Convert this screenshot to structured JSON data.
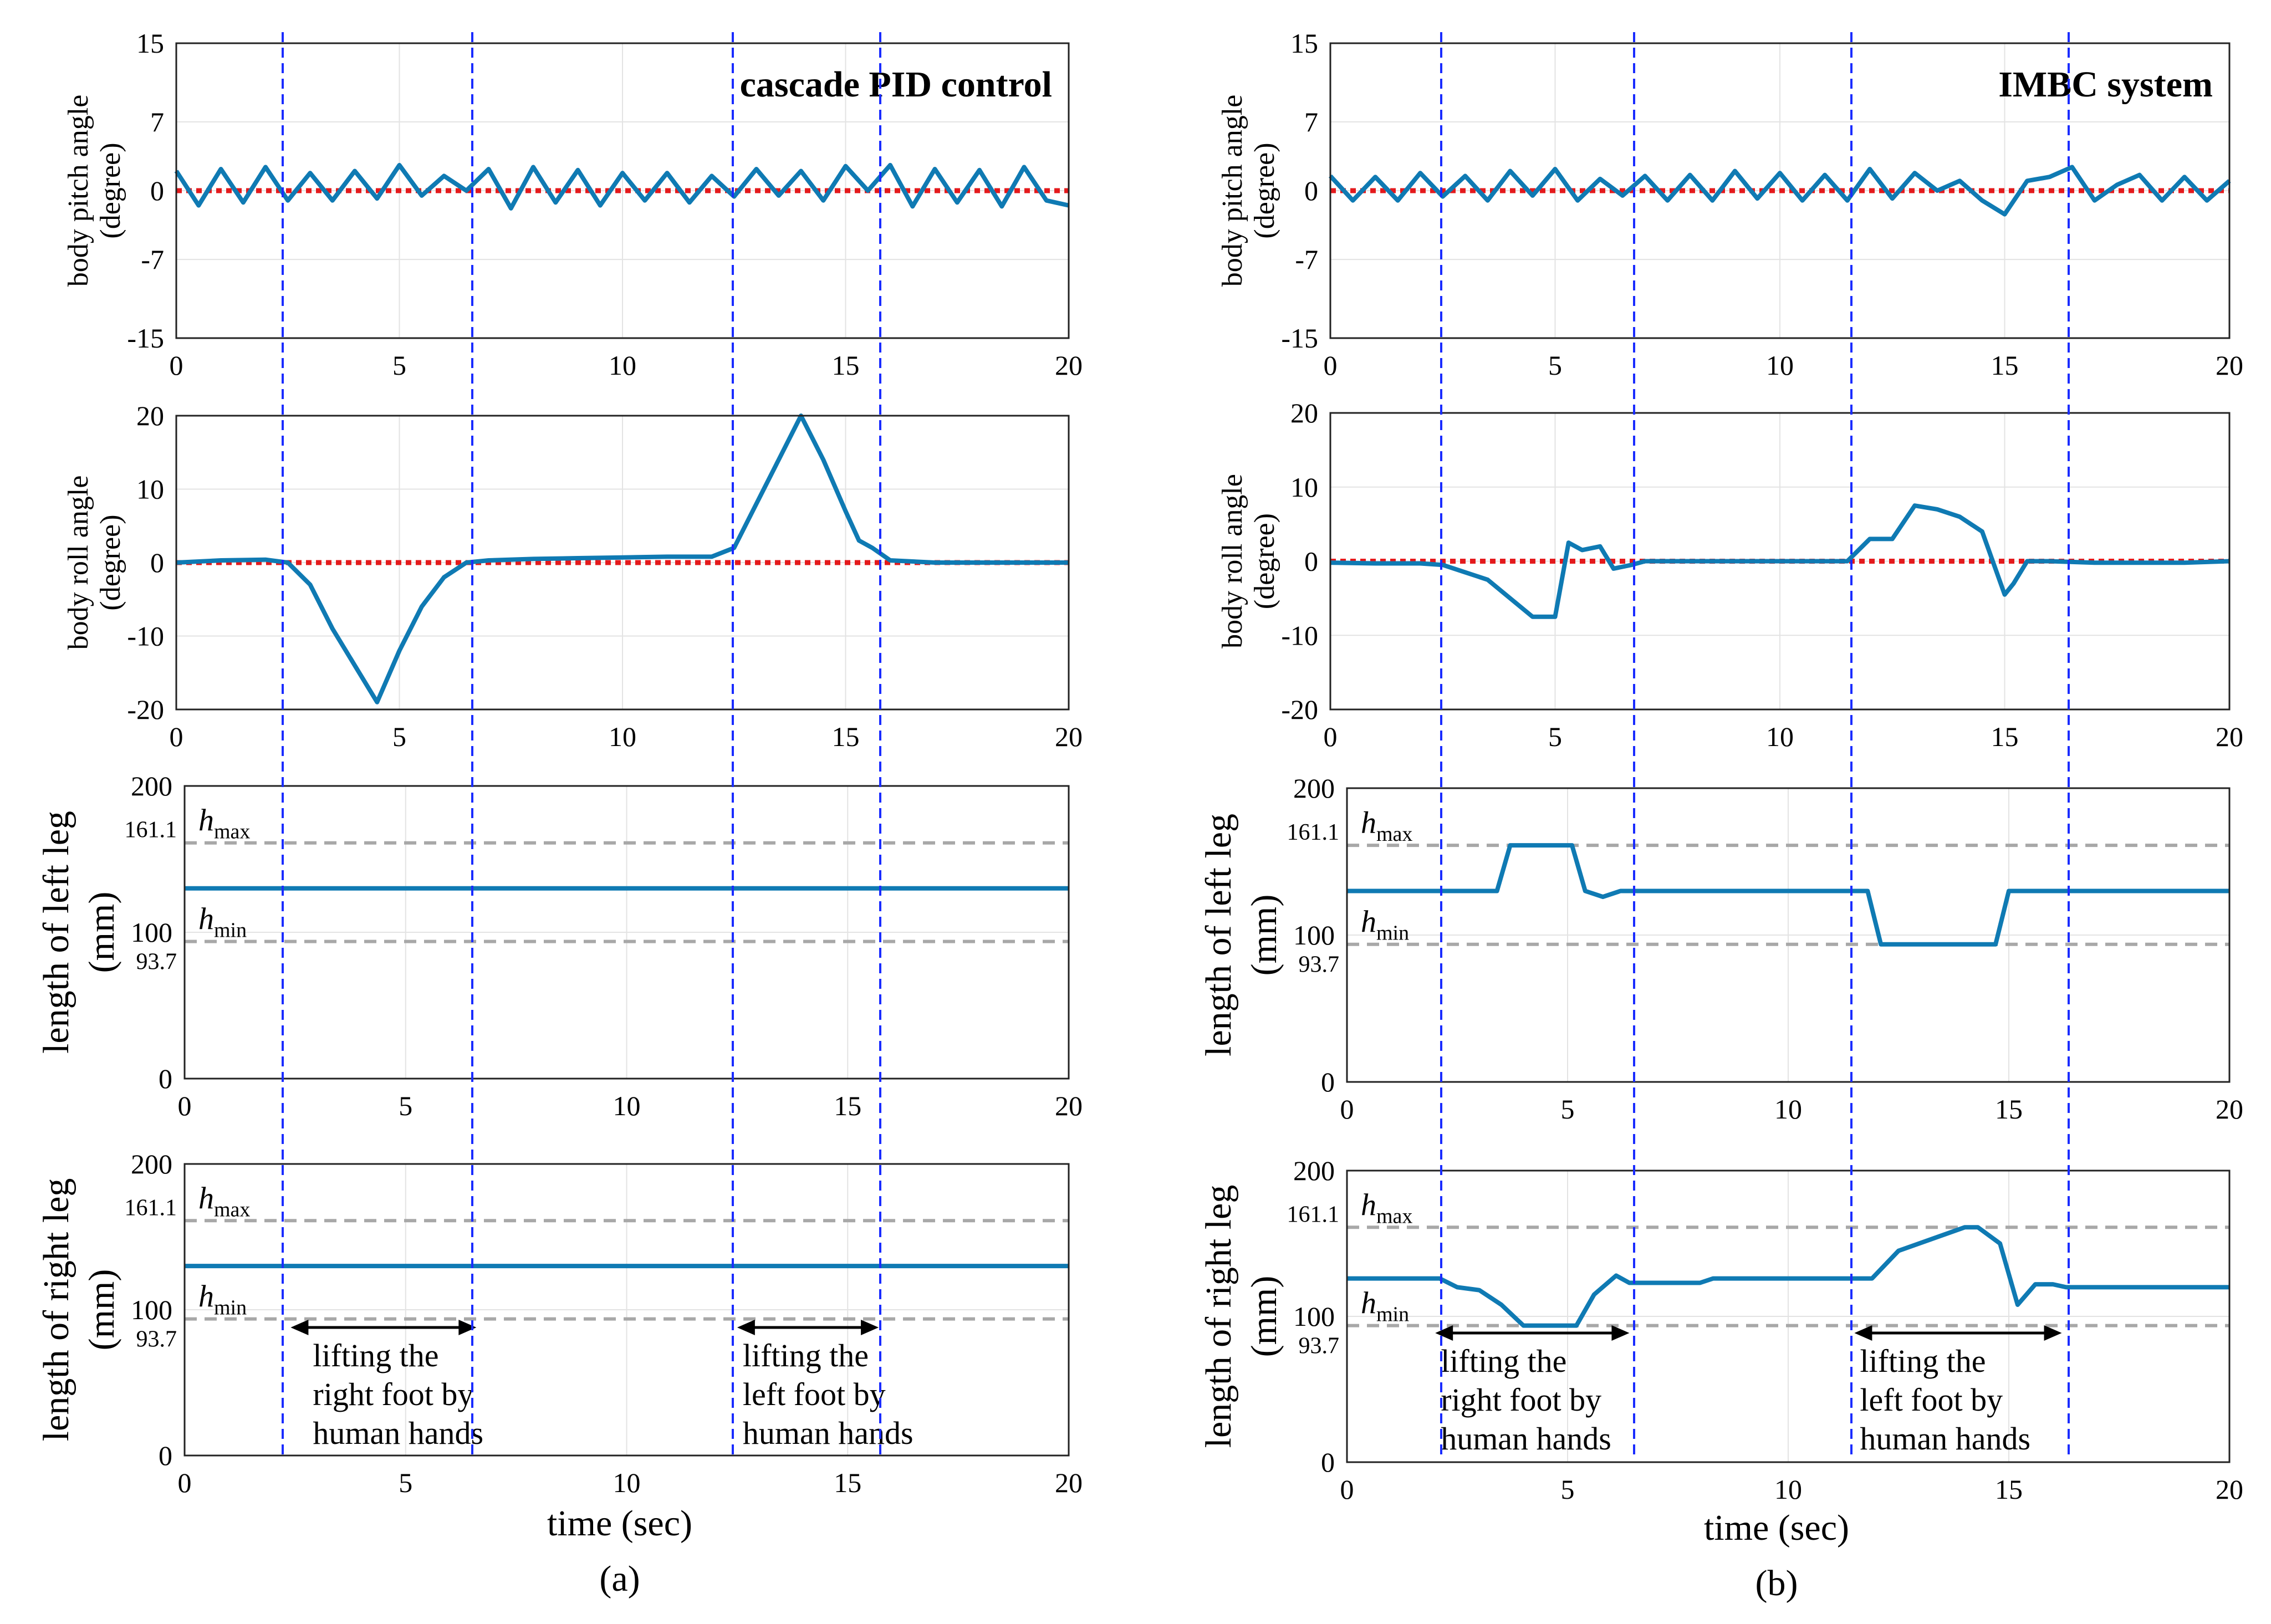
{
  "figure": {
    "time_label": "time (sec)",
    "columns": [
      {
        "label": "(a)",
        "title": "cascade PID control"
      },
      {
        "label": "(b)",
        "title": "IMBC system"
      }
    ],
    "ylabels": {
      "pitch": [
        "body pitch angle",
        "(degree)"
      ],
      "roll": [
        "body roll angle",
        "(degree)"
      ],
      "left": [
        "length of left leg",
        "(mm)"
      ],
      "right": [
        "length of right leg",
        "(mm)"
      ]
    },
    "limits": {
      "hmax": "h",
      "hmax_sub": "max",
      "hmin": "h",
      "hmin_sub": "min",
      "hmax_value": "161.1",
      "hmin_value": "93.7"
    },
    "annotations": {
      "a": [
        {
          "lines": [
            "lifting the",
            "right foot by",
            "human hands"
          ],
          "t0": 2.4,
          "t1": 6.6
        },
        {
          "lines": [
            "lifting the",
            "left foot by",
            "human hands"
          ],
          "t0": 12.5,
          "t1": 15.7
        }
      ],
      "b": [
        {
          "lines": [
            "lifting the",
            "right foot by",
            "human hands"
          ],
          "t0": 2.0,
          "t1": 6.4
        },
        {
          "lines": [
            "lifting the",
            "left foot by",
            "human hands"
          ],
          "t0": 11.5,
          "t1": 16.2
        }
      ]
    }
  },
  "chart_data": [
    {
      "id": "a-pitch",
      "type": "line",
      "title": "cascade PID control",
      "ylabel": "body pitch angle (degree)",
      "xlabel": "",
      "xlim": [
        0,
        20
      ],
      "ylim": [
        -15,
        15
      ],
      "xticks": [
        0,
        5,
        10,
        15,
        20
      ],
      "yticks": [
        -15,
        -7,
        0,
        7,
        15
      ],
      "events": [
        2.6,
        6.8,
        12.8,
        15.9
      ],
      "series": [
        {
          "name": "body pitch angle",
          "x": [
            0,
            0.5,
            1,
            1.5,
            2,
            2.5,
            3,
            3.5,
            4,
            4.5,
            5,
            5.5,
            6,
            6.5,
            7,
            7.5,
            8,
            8.5,
            9,
            9.5,
            10,
            10.5,
            11,
            11.5,
            12,
            12.5,
            13,
            13.5,
            14,
            14.5,
            15,
            15.5,
            16,
            16.5,
            17,
            17.5,
            18,
            18.5,
            19,
            19.5,
            20
          ],
          "y": [
            2,
            -1.5,
            2.2,
            -1.2,
            2.4,
            -1,
            1.8,
            -1,
            2,
            -0.8,
            2.6,
            -0.5,
            1.5,
            0,
            2.2,
            -1.8,
            2.4,
            -1.2,
            2.1,
            -1.5,
            1.8,
            -1,
            1.8,
            -1.2,
            1.5,
            -0.6,
            2.2,
            -0.5,
            2,
            -1,
            2.5,
            0,
            2.6,
            -1.6,
            2.2,
            -1.2,
            2.1,
            -1.6,
            2.4,
            -1,
            -1.5
          ]
        },
        {
          "name": "reference",
          "x": [
            0,
            20
          ],
          "y": [
            0,
            0
          ]
        }
      ]
    },
    {
      "id": "a-roll",
      "type": "line",
      "ylabel": "body roll angle (degree)",
      "xlabel": "",
      "xlim": [
        0,
        20
      ],
      "ylim": [
        -20,
        20
      ],
      "xticks": [
        0,
        5,
        10,
        15,
        20
      ],
      "yticks": [
        -20,
        -10,
        0,
        10,
        20
      ],
      "events": [
        2.5,
        6.6,
        12.5,
        15.9
      ],
      "series": [
        {
          "name": "body roll angle",
          "x": [
            0,
            1,
            2,
            2.5,
            3,
            3.5,
            4,
            4.5,
            5,
            5.5,
            6,
            6.5,
            7,
            8,
            9,
            10,
            11,
            12,
            12.5,
            13,
            13.5,
            14,
            14.5,
            15,
            15.3,
            15.6,
            16,
            17,
            18,
            19,
            20
          ],
          "y": [
            0,
            0.3,
            0.4,
            0,
            -3,
            -9,
            -14,
            -19,
            -12,
            -6,
            -2,
            0,
            0.3,
            0.5,
            0.6,
            0.7,
            0.8,
            0.8,
            2,
            8,
            14,
            20,
            14,
            7,
            3,
            2,
            0.3,
            0,
            0,
            0,
            0
          ]
        },
        {
          "name": "reference",
          "x": [
            0,
            20
          ],
          "y": [
            0,
            0
          ]
        }
      ]
    },
    {
      "id": "a-left",
      "type": "line",
      "ylabel": "length of left leg (mm)",
      "xlabel": "",
      "xlim": [
        0,
        20
      ],
      "ylim": [
        0,
        200
      ],
      "xticks": [
        0,
        5,
        10,
        15,
        20
      ],
      "yticks": [
        0,
        100,
        200
      ],
      "events": [
        2.3,
        6.4,
        12.4,
        15.7
      ],
      "series": [
        {
          "name": "left leg length",
          "x": [
            0,
            20
          ],
          "y": [
            130,
            130
          ]
        },
        {
          "name": "hmax",
          "x": [
            0,
            20
          ],
          "y": [
            161.1,
            161.1
          ]
        },
        {
          "name": "hmin",
          "x": [
            0,
            20
          ],
          "y": [
            93.7,
            93.7
          ]
        }
      ]
    },
    {
      "id": "a-right",
      "type": "line",
      "ylabel": "length of right leg (mm)",
      "xlabel": "time (sec)",
      "xlim": [
        0,
        20
      ],
      "ylim": [
        0,
        200
      ],
      "xticks": [
        0,
        5,
        10,
        15,
        20
      ],
      "yticks": [
        0,
        100,
        200
      ],
      "events": [
        2.2,
        6.4,
        12.4,
        15.7
      ],
      "series": [
        {
          "name": "right leg length",
          "x": [
            0,
            20
          ],
          "y": [
            130,
            130
          ]
        },
        {
          "name": "hmax",
          "x": [
            0,
            20
          ],
          "y": [
            161.1,
            161.1
          ]
        },
        {
          "name": "hmin",
          "x": [
            0,
            20
          ],
          "y": [
            93.7,
            93.7
          ]
        }
      ]
    },
    {
      "id": "b-pitch",
      "type": "line",
      "title": "IMBC system",
      "ylabel": "body pitch angle (degree)",
      "xlabel": "",
      "xlim": [
        0,
        20
      ],
      "ylim": [
        -15,
        15
      ],
      "xticks": [
        0,
        5,
        10,
        15,
        20
      ],
      "yticks": [
        -15,
        -7,
        0,
        7,
        15
      ],
      "events": [
        2.5,
        6.7,
        11.7,
        16.3
      ],
      "series": [
        {
          "name": "body pitch angle",
          "x": [
            0,
            0.5,
            1,
            1.5,
            2,
            2.5,
            3,
            3.5,
            4,
            4.5,
            5,
            5.5,
            6,
            6.5,
            7,
            7.5,
            8,
            8.5,
            9,
            9.5,
            10,
            10.5,
            11,
            11.5,
            12,
            12.5,
            13,
            13.5,
            14,
            14.5,
            15,
            15.5,
            16,
            16.5,
            17,
            17.5,
            18,
            18.5,
            19,
            19.5,
            20
          ],
          "y": [
            1.5,
            -1,
            1.4,
            -1,
            1.8,
            -0.6,
            1.5,
            -1,
            2,
            -0.5,
            2.2,
            -1,
            1.2,
            -0.5,
            1.5,
            -1,
            1.6,
            -1,
            2,
            -0.8,
            1.8,
            -1,
            1.6,
            -1,
            2.2,
            -0.8,
            1.8,
            0,
            1,
            -1,
            -2.4,
            1,
            1.4,
            2.4,
            -1,
            0.6,
            1.6,
            -1,
            1.4,
            -1,
            1
          ]
        },
        {
          "name": "reference",
          "x": [
            0,
            20
          ],
          "y": [
            0,
            0
          ]
        }
      ]
    },
    {
      "id": "b-roll",
      "type": "line",
      "ylabel": "body roll angle (degree)",
      "xlabel": "",
      "xlim": [
        0,
        20
      ],
      "ylim": [
        -20,
        20
      ],
      "xticks": [
        0,
        5,
        10,
        15,
        20
      ],
      "yticks": [
        -20,
        -10,
        0,
        10,
        20
      ],
      "events": [
        2.4,
        6.7,
        11.7,
        16.3
      ],
      "series": [
        {
          "name": "body roll angle",
          "x": [
            0,
            1,
            2,
            2.5,
            3,
            3.5,
            4,
            4.5,
            5,
            5.3,
            5.6,
            6,
            6.3,
            6.7,
            7,
            8,
            9,
            10,
            11,
            11.5,
            12,
            12.5,
            13,
            13.5,
            14,
            14.5,
            15,
            15.2,
            15.5,
            16,
            17,
            18,
            19,
            20
          ],
          "y": [
            -0.2,
            -0.3,
            -0.3,
            -0.5,
            -1.5,
            -2.5,
            -5,
            -7.5,
            -7.5,
            2.5,
            1.5,
            2,
            -1,
            -0.5,
            0,
            0,
            0,
            0,
            0,
            0,
            3,
            3,
            7.5,
            7,
            6,
            4,
            -4.5,
            -3,
            0,
            0,
            -0.2,
            -0.2,
            -0.2,
            0
          ]
        },
        {
          "name": "reference",
          "x": [
            0,
            20
          ],
          "y": [
            0,
            0
          ]
        }
      ]
    },
    {
      "id": "b-left",
      "type": "line",
      "ylabel": "length of left leg (mm)",
      "xlabel": "",
      "xlim": [
        0,
        20
      ],
      "ylim": [
        0,
        200
      ],
      "xticks": [
        0,
        5,
        10,
        15,
        20
      ],
      "yticks": [
        0,
        100,
        200
      ],
      "events": [
        2.1,
        6.5,
        11.5,
        16.3
      ],
      "series": [
        {
          "name": "left leg length",
          "x": [
            0,
            3.4,
            3.7,
            5.1,
            5.4,
            5.8,
            6.2,
            11.8,
            12.1,
            14.7,
            15.0,
            20
          ],
          "y": [
            130,
            130,
            161.1,
            161.1,
            130,
            126,
            130,
            130,
            93.7,
            93.7,
            130,
            130
          ]
        },
        {
          "name": "hmax",
          "x": [
            0,
            20
          ],
          "y": [
            161.1,
            161.1
          ]
        },
        {
          "name": "hmin",
          "x": [
            0,
            20
          ],
          "y": [
            93.7,
            93.7
          ]
        }
      ]
    },
    {
      "id": "b-right",
      "type": "line",
      "ylabel": "length of right leg (mm)",
      "xlabel": "time (sec)",
      "xlim": [
        0,
        20
      ],
      "ylim": [
        0,
        200
      ],
      "xticks": [
        0,
        5,
        10,
        15,
        20
      ],
      "yticks": [
        0,
        100,
        200
      ],
      "events": [
        2.0,
        6.4,
        11.5,
        16.2
      ],
      "series": [
        {
          "name": "right leg length",
          "x": [
            0,
            2.1,
            2.5,
            3.0,
            3.5,
            4.0,
            5.2,
            5.6,
            6.1,
            6.4,
            8.0,
            8.3,
            11.4,
            11.9,
            12.5,
            14.0,
            14.3,
            14.8,
            15.2,
            15.6,
            16.0,
            16.3,
            20
          ],
          "y": [
            126,
            126,
            120,
            118,
            108,
            93.7,
            93.7,
            115,
            128,
            123,
            123,
            126,
            126,
            126,
            145,
            161.1,
            161.1,
            150,
            108,
            122,
            122,
            120,
            120
          ]
        },
        {
          "name": "hmax",
          "x": [
            0,
            20
          ],
          "y": [
            161.1,
            161.1
          ]
        },
        {
          "name": "hmin",
          "x": [
            0,
            20
          ],
          "y": [
            93.7,
            93.7
          ]
        }
      ]
    }
  ]
}
